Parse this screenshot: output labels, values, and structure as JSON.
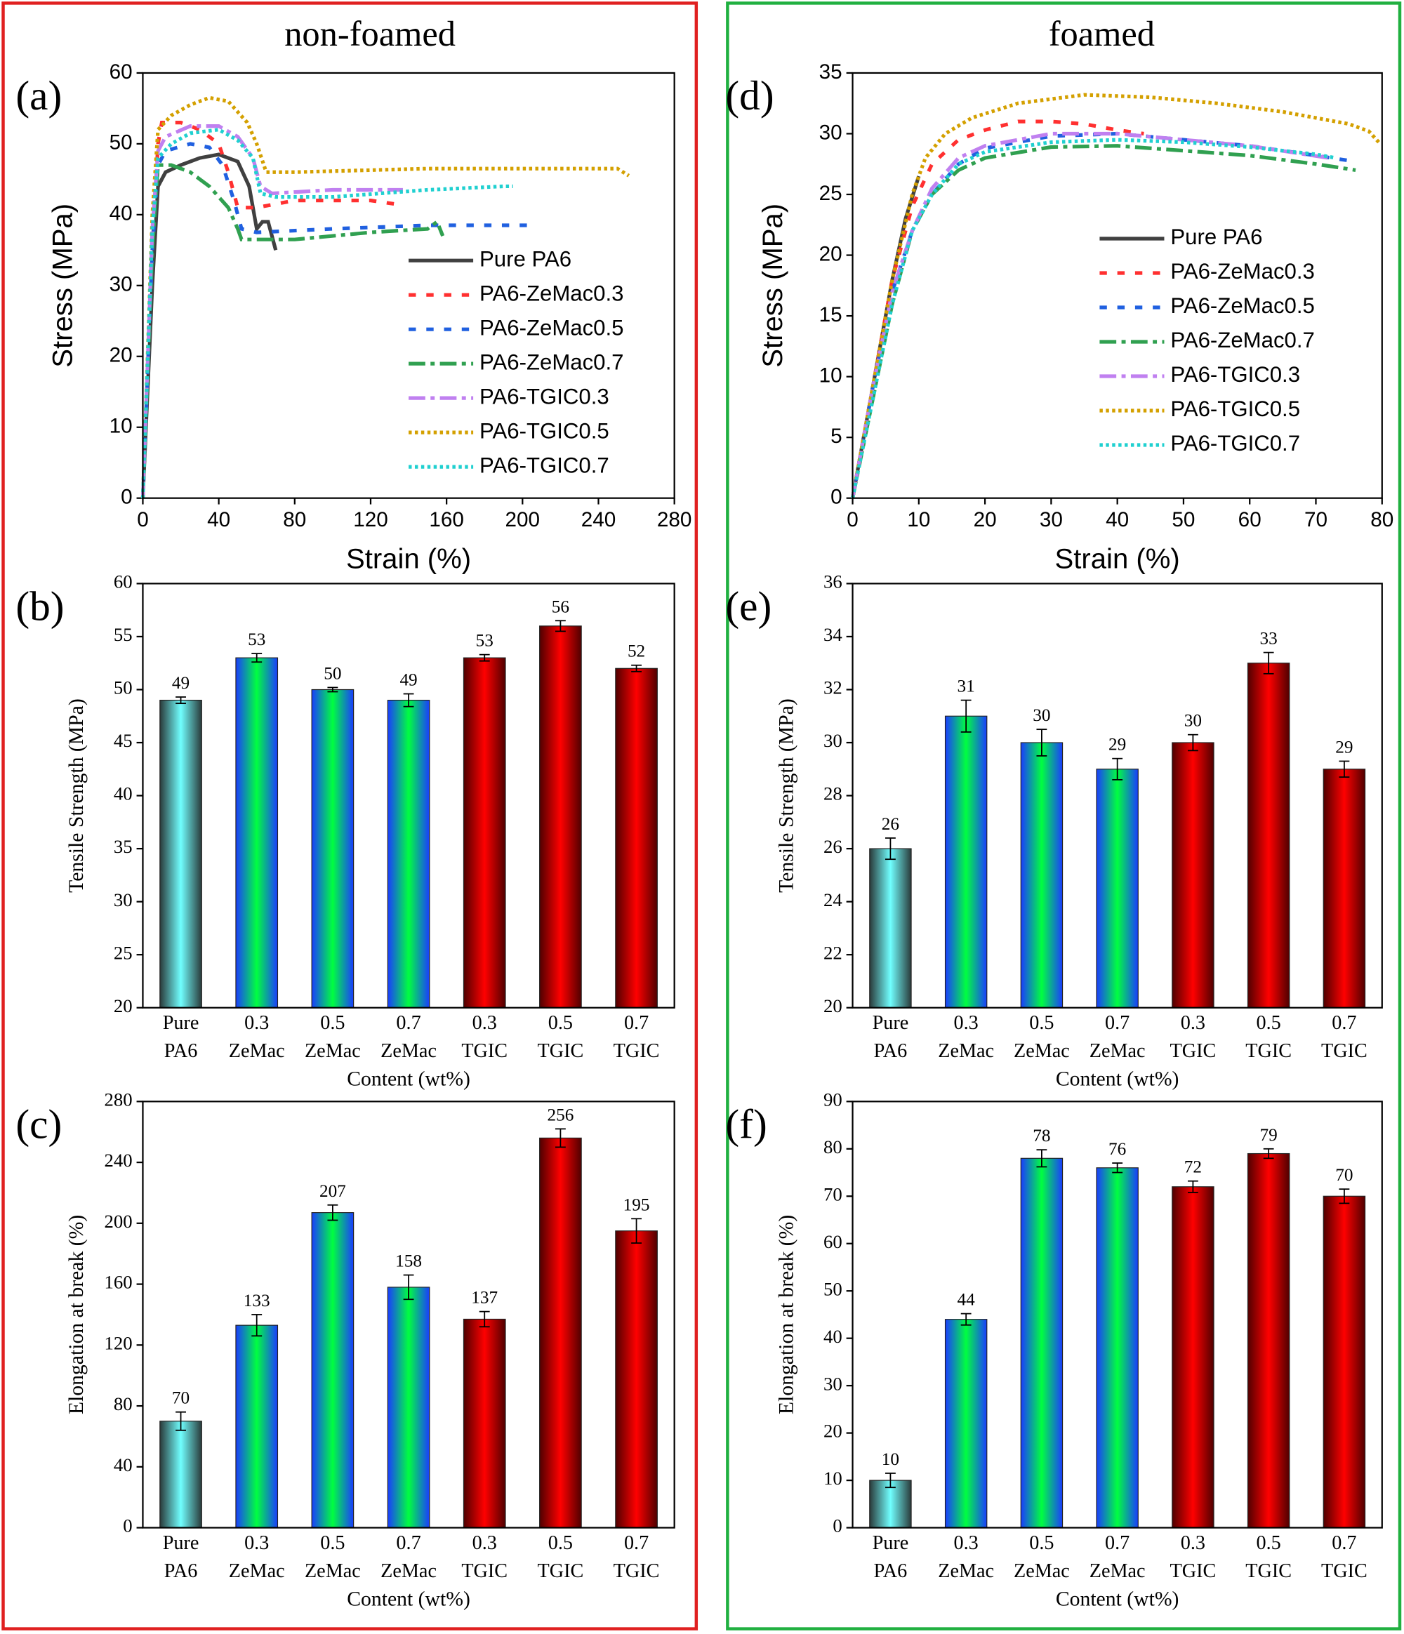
{
  "panels": [
    {
      "title": "non-foamed"
    },
    {
      "title": "foamed"
    }
  ],
  "chart_data": [
    {
      "type": "line",
      "label": "(a)",
      "xlabel": "Strain (%)",
      "ylabel": "Stress (MPa)",
      "xlim": [
        0,
        280
      ],
      "xticks": [
        0,
        40,
        80,
        120,
        160,
        200,
        240,
        280
      ],
      "ylim": [
        0,
        60
      ],
      "yticks": [
        0,
        10,
        20,
        30,
        40,
        50,
        60
      ],
      "series": [
        {
          "name": "Pure PA6",
          "color": "#404040",
          "style": "solid",
          "x": [
            0,
            5,
            8,
            12,
            20,
            30,
            40,
            50,
            56,
            60,
            63,
            66,
            68,
            70
          ],
          "values": [
            0,
            30,
            44,
            46,
            47,
            48,
            48.5,
            47.5,
            44,
            38,
            39,
            39,
            37,
            35
          ]
        },
        {
          "name": "PA6-ZeMac0.3",
          "color": "#ff3030",
          "style": "dash",
          "x": [
            0,
            5,
            8,
            10,
            20,
            30,
            40,
            45,
            50,
            60,
            80,
            100,
            120,
            133
          ],
          "values": [
            0,
            35,
            50,
            53,
            53,
            52,
            50,
            46,
            41,
            41,
            42,
            42,
            42,
            41.5
          ]
        },
        {
          "name": "PA6-ZeMac0.5",
          "color": "#2060e0",
          "style": "dash",
          "x": [
            0,
            5,
            8,
            12,
            25,
            35,
            42,
            48,
            52,
            60,
            100,
            150,
            207
          ],
          "values": [
            0,
            35,
            47,
            49,
            50,
            49.5,
            47,
            42,
            38,
            37.5,
            38,
            38.5,
            38.5
          ]
        },
        {
          "name": "PA6-ZeMac0.7",
          "color": "#30a050",
          "style": "dashdot",
          "x": [
            0,
            5,
            8,
            15,
            25,
            35,
            45,
            50,
            52,
            80,
            120,
            150,
            155,
            158
          ],
          "values": [
            0,
            35,
            47,
            47,
            46,
            44,
            41,
            38,
            36.5,
            36.5,
            37.5,
            38,
            39,
            37
          ]
        },
        {
          "name": "PA6-TGIC0.3",
          "color": "#c080f0",
          "style": "dashdot",
          "x": [
            0,
            5,
            8,
            12,
            25,
            40,
            50,
            58,
            62,
            68,
            100,
            137
          ],
          "values": [
            0,
            38,
            49,
            51,
            52.5,
            52.5,
            51,
            48,
            44,
            43,
            43.5,
            43.5
          ]
        },
        {
          "name": "PA6-TGIC0.5",
          "color": "#d4a000",
          "style": "dot",
          "x": [
            0,
            5,
            8,
            15,
            25,
            35,
            45,
            55,
            60,
            65,
            80,
            150,
            200,
            250,
            256
          ],
          "values": [
            0,
            40,
            52,
            54,
            55.5,
            56.5,
            56,
            53,
            50,
            46,
            46,
            46.5,
            46.5,
            46.5,
            45.5
          ]
        },
        {
          "name": "PA6-TGIC0.7",
          "color": "#20d0d0",
          "style": "dot",
          "x": [
            0,
            5,
            8,
            15,
            25,
            40,
            50,
            58,
            62,
            70,
            100,
            150,
            190,
            195
          ],
          "values": [
            0,
            38,
            48,
            50,
            51.5,
            52,
            50.5,
            48,
            43,
            42.5,
            42.5,
            43.5,
            44,
            44
          ]
        }
      ]
    },
    {
      "type": "bar",
      "label": "(b)",
      "xlabel": "Content (wt%)",
      "ylabel": "Tensile Strength (MPa)",
      "categories": [
        [
          "Pure",
          "PA6"
        ],
        [
          "0.3",
          "ZeMac"
        ],
        [
          "0.5",
          "ZeMac"
        ],
        [
          "0.7",
          "ZeMac"
        ],
        [
          "0.3",
          "TGIC"
        ],
        [
          "0.5",
          "TGIC"
        ],
        [
          "0.7",
          "TGIC"
        ]
      ],
      "values": [
        49,
        53,
        50,
        49,
        53,
        56,
        52
      ],
      "errors": [
        0.3,
        0.4,
        0.2,
        0.6,
        0.3,
        0.5,
        0.3
      ],
      "colors": [
        "#70ffff",
        "#00ff40",
        "#00ff40",
        "#00ff40",
        "#ff0000",
        "#ff0000",
        "#ff0000"
      ],
      "edge_colors": [
        "#2a3a3a",
        "#1a3cff",
        "#1a3cff",
        "#1a3cff",
        "#500000",
        "#500000",
        "#500000"
      ],
      "ylim": [
        20,
        60
      ],
      "yticks": [
        20,
        25,
        30,
        35,
        40,
        45,
        50,
        55,
        60
      ]
    },
    {
      "type": "bar",
      "label": "(c)",
      "xlabel": "Content (wt%)",
      "ylabel": "Elongation at break (%)",
      "categories": [
        [
          "Pure",
          "PA6"
        ],
        [
          "0.3",
          "ZeMac"
        ],
        [
          "0.5",
          "ZeMac"
        ],
        [
          "0.7",
          "ZeMac"
        ],
        [
          "0.3",
          "TGIC"
        ],
        [
          "0.5",
          "TGIC"
        ],
        [
          "0.7",
          "TGIC"
        ]
      ],
      "values": [
        70,
        133,
        207,
        158,
        137,
        256,
        195
      ],
      "errors": [
        6,
        7,
        5,
        8,
        5,
        6,
        8
      ],
      "colors": [
        "#70ffff",
        "#00ff40",
        "#00ff40",
        "#00ff40",
        "#ff0000",
        "#ff0000",
        "#ff0000"
      ],
      "edge_colors": [
        "#2a3a3a",
        "#1a3cff",
        "#1a3cff",
        "#1a3cff",
        "#500000",
        "#500000",
        "#500000"
      ],
      "ylim": [
        0,
        280
      ],
      "yticks": [
        0,
        40,
        80,
        120,
        160,
        200,
        240,
        280
      ]
    },
    {
      "type": "line",
      "label": "(d)",
      "xlabel": "Strain (%)",
      "ylabel": "Stress (MPa)",
      "xlim": [
        0,
        80
      ],
      "xticks": [
        0,
        10,
        20,
        30,
        40,
        50,
        60,
        70,
        80
      ],
      "ylim": [
        0,
        35
      ],
      "yticks": [
        0,
        5,
        10,
        15,
        20,
        25,
        30,
        35
      ],
      "series": [
        {
          "name": "Pure PA6",
          "color": "#404040",
          "style": "solid",
          "x": [
            0,
            2,
            4,
            6,
            8,
            10
          ],
          "values": [
            0,
            6,
            12,
            18,
            23,
            26.5
          ]
        },
        {
          "name": "PA6-ZeMac0.3",
          "color": "#ff3030",
          "style": "dash",
          "x": [
            0,
            3,
            6,
            9,
            12,
            16,
            20,
            25,
            30,
            35,
            40,
            44
          ],
          "values": [
            0,
            9,
            18,
            24,
            27.5,
            29.5,
            30.3,
            31,
            31,
            30.8,
            30.3,
            30
          ]
        },
        {
          "name": "PA6-ZeMac0.5",
          "color": "#2060e0",
          "style": "dash",
          "x": [
            0,
            3,
            6,
            9,
            12,
            16,
            20,
            30,
            40,
            50,
            60,
            70,
            76
          ],
          "values": [
            0,
            9,
            17,
            22,
            25,
            27.5,
            28.8,
            29.8,
            30,
            29.5,
            29,
            28.2,
            27.7
          ]
        },
        {
          "name": "PA6-ZeMac0.7",
          "color": "#30a050",
          "style": "dashdot",
          "x": [
            0,
            3,
            6,
            9,
            12,
            16,
            20,
            30,
            40,
            50,
            60,
            70,
            76
          ],
          "values": [
            0,
            8,
            16,
            22,
            25,
            27,
            28,
            28.9,
            29,
            28.6,
            28.2,
            27.5,
            27
          ]
        },
        {
          "name": "PA6-TGIC0.3",
          "color": "#c080f0",
          "style": "dashdot",
          "x": [
            0,
            3,
            6,
            9,
            12,
            16,
            20,
            30,
            40,
            50,
            60,
            72
          ],
          "values": [
            0,
            9,
            17,
            22,
            25.5,
            28,
            29,
            30,
            30,
            29.5,
            29,
            28
          ]
        },
        {
          "name": "PA6-TGIC0.5",
          "color": "#d4a000",
          "style": "dot",
          "x": [
            0,
            3,
            6,
            9,
            11,
            14,
            18,
            25,
            35,
            45,
            55,
            65,
            75,
            78,
            79.5
          ],
          "values": [
            0,
            9,
            18,
            25,
            28,
            30,
            31.3,
            32.5,
            33.2,
            33,
            32.5,
            31.8,
            30.8,
            30.2,
            29.3
          ]
        },
        {
          "name": "PA6-TGIC0.7",
          "color": "#20d0d0",
          "style": "dot",
          "x": [
            0,
            3,
            6,
            9,
            12,
            16,
            20,
            30,
            40,
            50,
            60,
            70,
            73
          ],
          "values": [
            0,
            8,
            16,
            22,
            25,
            27.5,
            28.5,
            29.3,
            29.5,
            29.3,
            28.9,
            28.3,
            28
          ]
        }
      ]
    },
    {
      "type": "bar",
      "label": "(e)",
      "xlabel": "Content (wt%)",
      "ylabel": "Tensile Strength (MPa)",
      "categories": [
        [
          "Pure",
          "PA6"
        ],
        [
          "0.3",
          "ZeMac"
        ],
        [
          "0.5",
          "ZeMac"
        ],
        [
          "0.7",
          "ZeMac"
        ],
        [
          "0.3",
          "TGIC"
        ],
        [
          "0.5",
          "TGIC"
        ],
        [
          "0.7",
          "TGIC"
        ]
      ],
      "values": [
        26,
        31,
        30,
        29,
        30,
        33,
        29
      ],
      "errors": [
        0.4,
        0.6,
        0.5,
        0.4,
        0.3,
        0.4,
        0.3
      ],
      "colors": [
        "#70ffff",
        "#00ff40",
        "#00ff40",
        "#00ff40",
        "#ff0000",
        "#ff0000",
        "#ff0000"
      ],
      "edge_colors": [
        "#2a3a3a",
        "#1a3cff",
        "#1a3cff",
        "#1a3cff",
        "#500000",
        "#500000",
        "#500000"
      ],
      "ylim": [
        20,
        36
      ],
      "yticks": [
        20,
        22,
        24,
        26,
        28,
        30,
        32,
        34,
        36
      ]
    },
    {
      "type": "bar",
      "label": "(f)",
      "xlabel": "Content (wt%)",
      "ylabel": "Elongation at break (%)",
      "categories": [
        [
          "Pure",
          "PA6"
        ],
        [
          "0.3",
          "ZeMac"
        ],
        [
          "0.5",
          "ZeMac"
        ],
        [
          "0.7",
          "ZeMac"
        ],
        [
          "0.3",
          "TGIC"
        ],
        [
          "0.5",
          "TGIC"
        ],
        [
          "0.7",
          "TGIC"
        ]
      ],
      "values": [
        10,
        44,
        78,
        76,
        72,
        79,
        70
      ],
      "errors": [
        1.5,
        1.2,
        1.8,
        1,
        1.2,
        1,
        1.5
      ],
      "colors": [
        "#70ffff",
        "#00ff40",
        "#00ff40",
        "#00ff40",
        "#ff0000",
        "#ff0000",
        "#ff0000"
      ],
      "edge_colors": [
        "#2a3a3a",
        "#1a3cff",
        "#1a3cff",
        "#1a3cff",
        "#500000",
        "#500000",
        "#500000"
      ],
      "ylim": [
        0,
        90
      ],
      "yticks": [
        0,
        10,
        20,
        30,
        40,
        50,
        60,
        70,
        80,
        90
      ]
    }
  ]
}
